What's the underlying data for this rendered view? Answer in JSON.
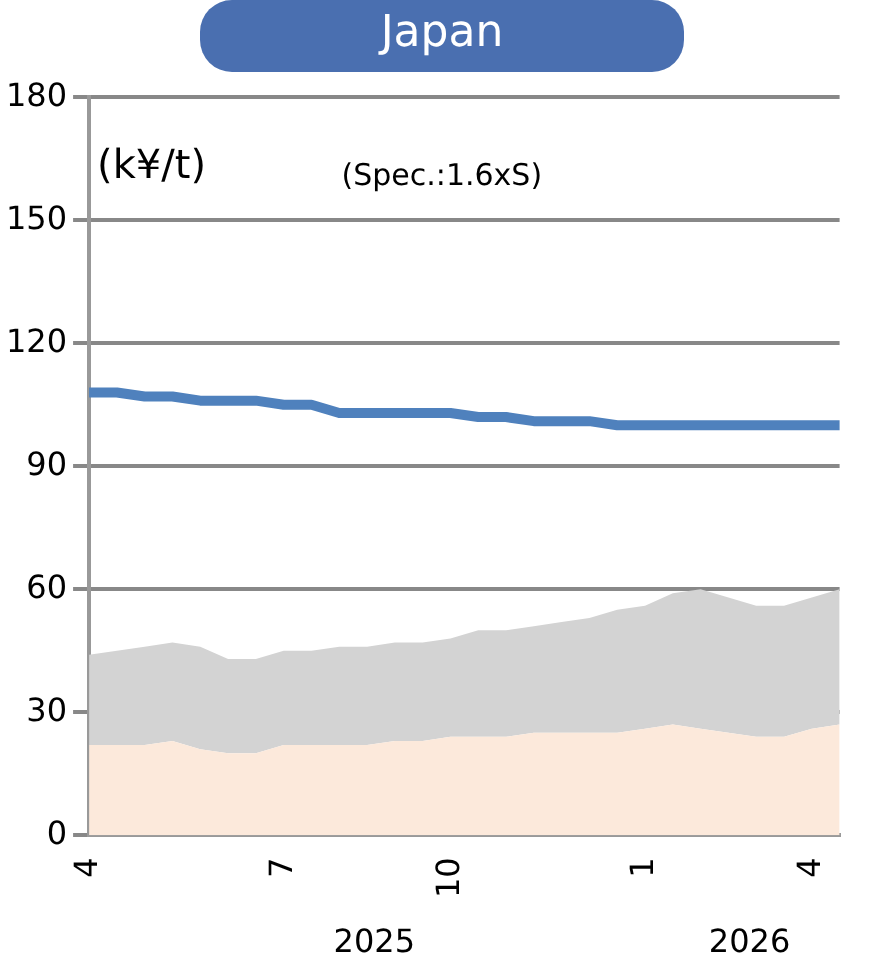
{
  "chart_data": {
    "type": "area",
    "title": "Japan",
    "ylabel": "(k¥/t)",
    "annotations": [
      "(Spec.:1.6xS)",
      "2025",
      "2026"
    ],
    "categories": [
      "4",
      null,
      null,
      null,
      null,
      null,
      null,
      "7",
      null,
      null,
      null,
      null,
      null,
      "10",
      null,
      null,
      null,
      null,
      null,
      null,
      "1",
      null,
      null,
      null,
      null,
      null,
      "4",
      null
    ],
    "series": [
      {
        "color": "#fce9db",
        "values": [
          22,
          22,
          22,
          23,
          21,
          20,
          20,
          22,
          22,
          22,
          22,
          23,
          23,
          24,
          24,
          24,
          25,
          25,
          25,
          25,
          26,
          27,
          26,
          25,
          24,
          24,
          26,
          27
        ]
      },
      {
        "color": "#d3d3d3",
        "values": [
          22,
          23,
          24,
          24,
          25,
          23,
          23,
          23,
          23,
          24,
          24,
          24,
          24,
          24,
          26,
          26,
          26,
          27,
          28,
          30,
          30,
          32,
          34,
          33,
          32,
          32,
          32,
          33
        ]
      },
      {
        "type": "line",
        "color": "#4f81bd",
        "values": [
          108,
          108,
          107,
          107,
          106,
          106,
          106,
          105,
          105,
          103,
          103,
          103,
          103,
          103,
          102,
          102,
          101,
          101,
          101,
          100,
          100,
          100,
          100,
          100,
          100,
          100,
          100,
          100
        ]
      }
    ],
    "stacked": true,
    "marker": "none",
    "ylim": [
      0,
      180
    ],
    "yticks": [
      0,
      30,
      60,
      90,
      120,
      150,
      180
    ],
    "grid": "y"
  }
}
